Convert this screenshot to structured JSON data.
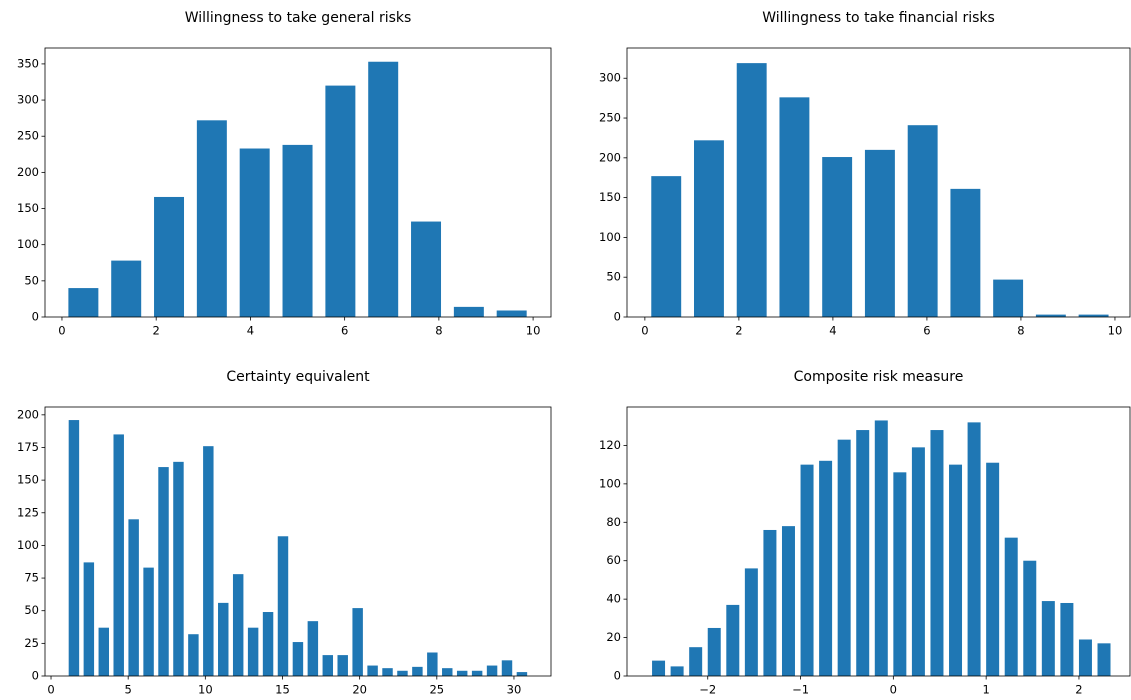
{
  "chart_data": [
    {
      "type": "histogram",
      "title": "Willingness to take general risks",
      "color": "#1f77b4",
      "bins": [
        0,
        0.909,
        1.818,
        2.727,
        3.636,
        4.545,
        5.455,
        6.364,
        7.273,
        8.182,
        9.091,
        10
      ],
      "values": [
        40,
        78,
        166,
        272,
        233,
        238,
        320,
        353,
        132,
        14,
        9
      ],
      "xlim": [
        -0.36,
        10.38
      ],
      "ylim": [
        0,
        372
      ],
      "xticks": [
        0,
        2,
        4,
        6,
        8,
        10
      ],
      "yticks": [
        0,
        50,
        100,
        150,
        200,
        250,
        300,
        350
      ]
    },
    {
      "type": "histogram",
      "title": "Willingness to take financial risks",
      "color": "#1f77b4",
      "bins": [
        0,
        0.909,
        1.818,
        2.727,
        3.636,
        4.545,
        5.455,
        6.364,
        7.273,
        8.182,
        9.091,
        10
      ],
      "values": [
        177,
        222,
        319,
        276,
        201,
        210,
        241,
        161,
        47,
        3,
        3
      ],
      "xlim": [
        -0.38,
        10.32
      ],
      "ylim": [
        0,
        338
      ],
      "xticks": [
        0,
        2,
        4,
        6,
        8,
        10
      ],
      "yticks": [
        0,
        50,
        100,
        150,
        200,
        250,
        300
      ]
    },
    {
      "type": "histogram",
      "title": "Certainty equivalent",
      "color": "#1f77b4",
      "bins": [
        1,
        1.968,
        2.935,
        3.903,
        4.871,
        5.839,
        6.806,
        7.774,
        8.742,
        9.71,
        10.677,
        11.645,
        12.613,
        13.581,
        14.548,
        15.516,
        16.484,
        17.452,
        18.419,
        19.387,
        20.355,
        21.323,
        22.29,
        23.258,
        24.226,
        25.194,
        26.161,
        27.129,
        28.097,
        29.065,
        30.032,
        31
      ],
      "values": [
        196,
        87,
        37,
        185,
        120,
        83,
        160,
        164,
        32,
        176,
        56,
        78,
        37,
        49,
        107,
        26,
        42,
        16,
        16,
        52,
        8,
        6,
        4,
        7,
        18,
        6,
        4,
        4,
        8,
        12,
        3
      ],
      "xlim": [
        -0.39,
        32.4
      ],
      "ylim": [
        0,
        206
      ],
      "xticks": [
        0,
        5,
        10,
        15,
        20,
        25,
        30
      ],
      "yticks": [
        0,
        25,
        50,
        75,
        100,
        125,
        150,
        175,
        200
      ]
    },
    {
      "type": "histogram",
      "title": "Composite risk measure",
      "color": "#1f77b4",
      "bins": [
        -2.63,
        -2.43,
        -2.23,
        -2.03,
        -1.83,
        -1.63,
        -1.43,
        -1.23,
        -1.03,
        -0.83,
        -0.63,
        -0.43,
        -0.23,
        -0.03,
        0.17,
        0.37,
        0.57,
        0.77,
        0.97,
        1.17,
        1.37,
        1.57,
        1.77,
        1.97,
        2.17,
        2.37
      ],
      "values": [
        8,
        5,
        15,
        25,
        37,
        56,
        76,
        78,
        110,
        112,
        123,
        128,
        133,
        106,
        119,
        128,
        110,
        132,
        111,
        72,
        60,
        39,
        38,
        19,
        17
      ],
      "xlim": [
        -2.87,
        2.55
      ],
      "ylim": [
        0,
        140
      ],
      "xticks": [
        {
          "value": -2,
          "label": "−2"
        },
        {
          "value": -1,
          "label": "−1"
        },
        0,
        1,
        2
      ],
      "yticks": [
        0,
        20,
        40,
        60,
        80,
        100,
        120
      ]
    }
  ]
}
